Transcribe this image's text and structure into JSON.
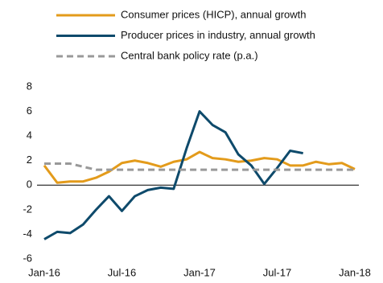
{
  "chart_data": {
    "type": "line",
    "categories": [
      "Jan-16",
      null,
      null,
      null,
      null,
      null,
      "Jul-16",
      null,
      null,
      null,
      null,
      null,
      "Jan-17",
      null,
      null,
      null,
      null,
      null,
      "Jul-17",
      null,
      null,
      null,
      null,
      null,
      "Jan-18"
    ],
    "series": [
      {
        "name": "Consumer prices (HICP), annual growth",
        "color": "#e39b1b",
        "dashed": false,
        "values": [
          1.6,
          0.2,
          0.3,
          0.3,
          0.6,
          1.1,
          1.8,
          2.0,
          1.8,
          1.5,
          1.9,
          2.1,
          2.7,
          2.2,
          2.1,
          1.9,
          2.0,
          2.2,
          2.1,
          1.6,
          1.6,
          1.9,
          1.7,
          1.8,
          1.3
        ]
      },
      {
        "name": "Producer prices in industry, annual growth",
        "color": "#0e4a6b",
        "dashed": false,
        "values": [
          -4.4,
          -3.8,
          -3.9,
          -3.2,
          -2.0,
          -0.9,
          -2.1,
          -0.9,
          -0.4,
          -0.2,
          -0.3,
          3.0,
          6.0,
          4.9,
          4.3,
          2.5,
          1.6,
          0.1,
          1.4,
          2.8,
          2.6,
          null,
          null,
          null,
          null
        ]
      },
      {
        "name": "Central bank policy rate (p.a.)",
        "color": "#999999",
        "dashed": true,
        "values": [
          1.75,
          1.75,
          1.75,
          1.5,
          1.25,
          1.25,
          1.25,
          1.25,
          1.25,
          1.25,
          1.25,
          1.25,
          1.25,
          1.25,
          1.25,
          1.25,
          1.25,
          1.25,
          1.25,
          1.25,
          1.25,
          1.25,
          1.25,
          1.25,
          1.25
        ]
      }
    ],
    "ylim": [
      -6,
      8
    ],
    "yticks": [
      -6,
      -4,
      -2,
      0,
      2,
      4,
      6,
      8
    ],
    "legend": "top"
  }
}
